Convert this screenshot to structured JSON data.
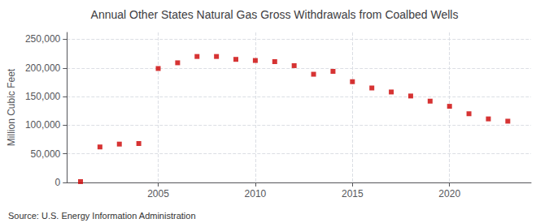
{
  "chart_data": {
    "type": "scatter",
    "title": "Annual Other States Natural Gas Gross Withdrawals from Coalbed Wells",
    "ylabel": "Million Cubic Feet",
    "annotations": [
      "Source: U.S. Energy Information Administration"
    ],
    "x": [
      2001,
      2002,
      2003,
      2004,
      2005,
      2006,
      2007,
      2008,
      2009,
      2010,
      2011,
      2012,
      2013,
      2014,
      2015,
      2016,
      2017,
      2018,
      2019,
      2020,
      2021,
      2022,
      2023
    ],
    "values": [
      1500,
      62000,
      67000,
      68000,
      199000,
      209000,
      220000,
      220000,
      215000,
      213000,
      211000,
      204000,
      189000,
      194000,
      176000,
      165000,
      158000,
      151000,
      142000,
      133000,
      120000,
      111000,
      107000
    ],
    "color": "#cc0000",
    "marker": "square",
    "xlim": [
      2000.3,
      2024.2
    ],
    "xticks": [
      2005,
      2010,
      2015,
      2020
    ],
    "ylim": [
      0,
      262000
    ],
    "yticks": [
      0,
      {
        "value": 50000,
        "label": "50,000"
      },
      {
        "value": 100000,
        "label": "100,000"
      },
      {
        "value": 150000,
        "label": "150,000"
      },
      {
        "value": 200000,
        "label": "200,000"
      },
      {
        "value": 250000,
        "label": "250,000"
      }
    ],
    "grid": true
  }
}
